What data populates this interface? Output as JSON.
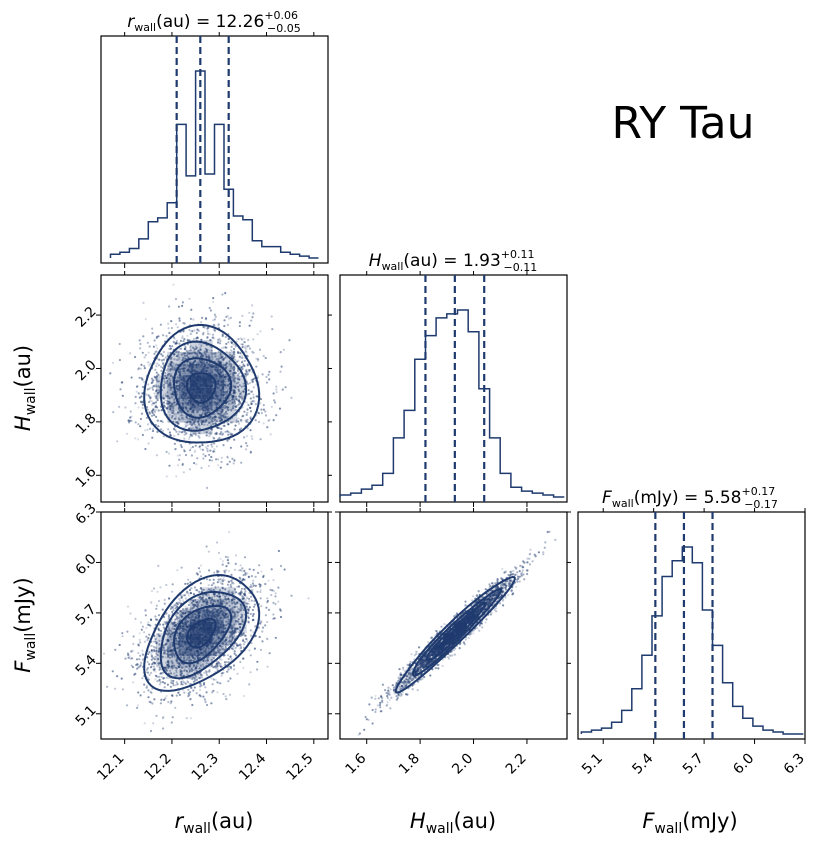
{
  "plot_title": "RY Tau",
  "colors": {
    "main": "#1f3a6e",
    "light": "#dde3ee",
    "mid": "#8c9dbf"
  },
  "chart_data": [
    {
      "type": "histogram",
      "panel": "diag-r",
      "title": {
        "symbol": "r",
        "sub": "wall",
        "unit": "(au)",
        "eq": " = 12.26",
        "sup": "+0.06",
        "subv": "−0.05"
      },
      "median": 12.26,
      "lo": 12.21,
      "hi": 12.32,
      "xlim": [
        12.05,
        12.53
      ],
      "bins": [
        12.07,
        12.09,
        12.11,
        12.13,
        12.15,
        12.17,
        12.19,
        12.21,
        12.23,
        12.25,
        12.27,
        12.29,
        12.31,
        12.33,
        12.35,
        12.37,
        12.39,
        12.41,
        12.43,
        12.45,
        12.47,
        12.49,
        12.51
      ],
      "counts": [
        0.02,
        0.03,
        0.05,
        0.1,
        0.19,
        0.21,
        0.29,
        0.7,
        0.43,
        0.98,
        0.44,
        0.7,
        0.36,
        0.22,
        0.2,
        0.09,
        0.06,
        0.06,
        0.03,
        0.02,
        0.01,
        0.0
      ]
    },
    {
      "type": "histogram",
      "panel": "diag-h",
      "title": {
        "symbol": "H",
        "sub": "wall",
        "unit": "(au)",
        "eq": " = 1.93",
        "sup": "+0.11",
        "subv": "−0.11"
      },
      "median": 1.93,
      "lo": 1.82,
      "hi": 2.04,
      "xlim": [
        1.5,
        2.35
      ],
      "bins": [
        1.5,
        1.54,
        1.58,
        1.62,
        1.66,
        1.7,
        1.74,
        1.78,
        1.82,
        1.86,
        1.9,
        1.94,
        1.98,
        2.02,
        2.06,
        2.1,
        2.14,
        2.18,
        2.22,
        2.26,
        2.3,
        2.34
      ],
      "counts": [
        0.01,
        0.02,
        0.04,
        0.06,
        0.12,
        0.3,
        0.44,
        0.7,
        0.82,
        0.91,
        0.93,
        0.95,
        0.84,
        0.55,
        0.3,
        0.12,
        0.05,
        0.03,
        0.02,
        0.01,
        0.0
      ]
    },
    {
      "type": "histogram",
      "panel": "diag-f",
      "title": {
        "symbol": "F",
        "sub": "wall",
        "unit": "(mJy)",
        "eq": " = 5.58",
        "sup": "+0.17",
        "subv": "−0.17"
      },
      "median": 5.58,
      "lo": 5.41,
      "hi": 5.75,
      "xlim": [
        4.95,
        6.3
      ],
      "bins": [
        4.97,
        5.03,
        5.09,
        5.15,
        5.21,
        5.27,
        5.33,
        5.39,
        5.45,
        5.51,
        5.57,
        5.63,
        5.69,
        5.75,
        5.81,
        5.87,
        5.93,
        5.99,
        6.05,
        6.11,
        6.17,
        6.23,
        6.29
      ],
      "counts": [
        0.01,
        0.02,
        0.03,
        0.06,
        0.12,
        0.23,
        0.4,
        0.6,
        0.8,
        0.88,
        0.95,
        0.87,
        0.63,
        0.45,
        0.26,
        0.14,
        0.08,
        0.04,
        0.02,
        0.01,
        0.0,
        0.0
      ]
    },
    {
      "type": "scatter-contour",
      "panel": "r-h",
      "xlim": [
        12.05,
        12.53
      ],
      "ylim": [
        1.5,
        2.35
      ],
      "mean": [
        12.262,
        1.93
      ],
      "sd": [
        0.06,
        0.11
      ],
      "corr": 0.0,
      "n_points": 2600,
      "levels_sigma": [
        0.5,
        1.0,
        1.5,
        2.0
      ]
    },
    {
      "type": "scatter-contour",
      "panel": "r-f",
      "xlim": [
        12.05,
        12.53
      ],
      "ylim": [
        4.95,
        6.3
      ],
      "mean": [
        12.262,
        5.58
      ],
      "sd": [
        0.06,
        0.17
      ],
      "corr": 0.45,
      "n_points": 2600,
      "levels_sigma": [
        0.5,
        1.0,
        1.5,
        2.0
      ]
    },
    {
      "type": "scatter-contour",
      "panel": "h-f",
      "xlim": [
        1.5,
        2.35
      ],
      "ylim": [
        4.95,
        6.3
      ],
      "mean": [
        1.93,
        5.58
      ],
      "sd": [
        0.11,
        0.17
      ],
      "corr": 0.97,
      "n_points": 2600,
      "levels_sigma": [
        0.5,
        1.0,
        1.5,
        2.0
      ]
    }
  ],
  "axes": {
    "r": {
      "ticks": [
        12.1,
        12.2,
        12.3,
        12.4,
        12.5
      ],
      "labels": [
        "12.1",
        "12.2",
        "12.3",
        "12.4",
        "12.5"
      ],
      "label_symbol": "r",
      "label_sub": "wall",
      "label_unit": "(au)"
    },
    "h": {
      "ticks": [
        1.6,
        1.8,
        2.0,
        2.2
      ],
      "labels": [
        "1.6",
        "1.8",
        "2.0",
        "2.2"
      ],
      "label_symbol": "H",
      "label_sub": "wall",
      "label_unit": "(au)"
    },
    "f": {
      "ticks": [
        5.1,
        5.4,
        5.7,
        6.0,
        6.3
      ],
      "labels": [
        "5.1",
        "5.4",
        "5.7",
        "6.0",
        "6.3"
      ],
      "label_symbol": "F",
      "label_sub": "wall",
      "label_unit": "(mJy)"
    }
  }
}
